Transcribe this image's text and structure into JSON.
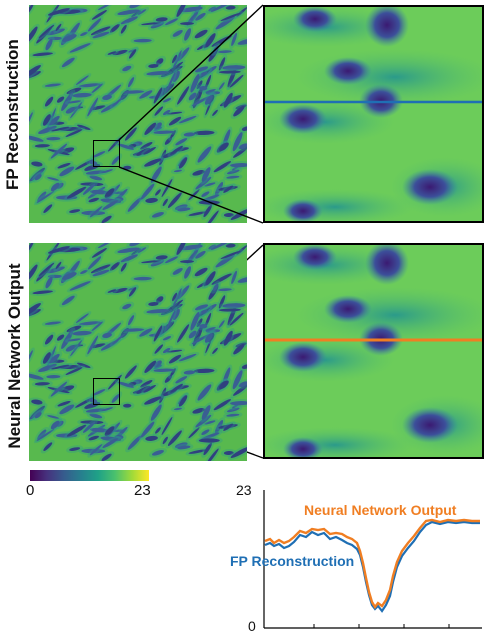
{
  "rows": [
    {
      "label": "FP Reconstruction"
    },
    {
      "label": "Neural Network Output"
    }
  ],
  "colorbar": {
    "min": "0",
    "max": "23",
    "colors": [
      "#440154",
      "#46327e",
      "#365c8d",
      "#277f8e",
      "#1fa187",
      "#4ac16d",
      "#a0da39",
      "#fde725"
    ]
  },
  "line_colors": {
    "fp": "#1f6fb4",
    "nn": "#f07e22"
  },
  "plot": {
    "y_top": "23",
    "y_bottom": "0",
    "series": [
      {
        "name": "Neural Network Output"
      },
      {
        "name": "FP Reconstruction"
      }
    ]
  }
}
